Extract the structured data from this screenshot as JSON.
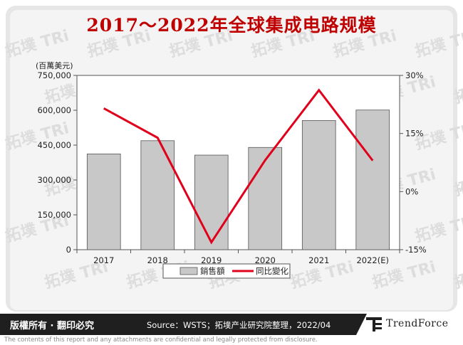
{
  "title": "2017～2022年全球集成电路规模",
  "footer": {
    "copyright": "版權所有 · 翻印必究",
    "source": "Source：WSTS；拓墣产业研究院整理，2022/04",
    "brand_mark": "T",
    "brand": "TrendForce",
    "disclaimer": "The contents of this report and any attachments are confidential and legally protected from disclosure."
  },
  "watermark": "拓墣 TRi",
  "colors": {
    "title": "#c00000",
    "bar_fill": "#c8c8c8",
    "bar_stroke": "#555555",
    "line": "#e0001b"
  },
  "chart_data": {
    "type": "bar",
    "categories": [
      "2017",
      "2018",
      "2019",
      "2020",
      "2021",
      "2022(E)"
    ],
    "y_unit_label": "(百萬美元)",
    "ylim": [
      0,
      750000
    ],
    "y_ticks": [
      "0",
      "150,000",
      "300,000",
      "450,000",
      "600,000",
      "750,000"
    ],
    "y_tick_values": [
      0,
      150000,
      300000,
      450000,
      600000,
      750000
    ],
    "y2lim": [
      -15,
      30
    ],
    "y2_ticks": [
      "-15%",
      "0%",
      "15%",
      "30%"
    ],
    "y2_tick_values": [
      -15,
      0,
      15,
      30
    ],
    "series": [
      {
        "name": "銷售額",
        "kind": "bar",
        "axis": "left",
        "values": [
          412000,
          469000,
          407000,
          440000,
          556000,
          601000
        ]
      },
      {
        "name": "同比變化",
        "kind": "line",
        "axis": "right",
        "values": [
          21.5,
          13.9,
          -13.1,
          8.1,
          26.2,
          8.0
        ]
      }
    ],
    "legend_position": "bottom",
    "grid": false
  }
}
